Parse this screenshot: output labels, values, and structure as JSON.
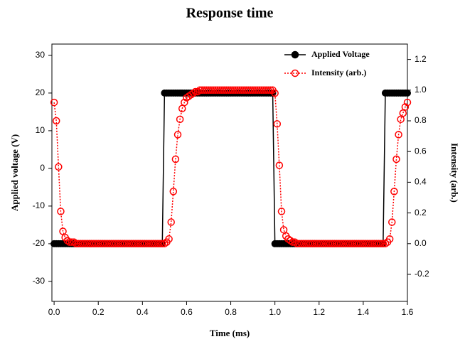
{
  "chart_data": {
    "type": "line",
    "title": "Response time",
    "x_label": "Time (ms)",
    "y_label": "Applied voltage (V)",
    "y2_label": "Intensity (arb.)",
    "x": [
      0,
      0.01,
      0.02,
      0.03,
      0.04,
      0.05,
      0.06,
      0.07,
      0.08,
      0.09,
      0.1,
      0.11,
      0.12,
      0.13,
      0.14,
      0.15,
      0.16,
      0.17,
      0.18,
      0.19,
      0.2,
      0.21,
      0.22,
      0.23,
      0.24,
      0.25,
      0.26,
      0.27,
      0.28,
      0.29,
      0.3,
      0.31,
      0.32,
      0.33,
      0.34,
      0.35,
      0.36,
      0.37,
      0.38,
      0.39,
      0.4,
      0.41,
      0.42,
      0.43,
      0.44,
      0.45,
      0.46,
      0.47,
      0.48,
      0.49,
      0.5,
      0.51,
      0.52,
      0.53,
      0.54,
      0.55,
      0.56,
      0.57,
      0.58,
      0.59,
      0.6,
      0.61,
      0.62,
      0.63,
      0.64,
      0.65,
      0.66,
      0.67,
      0.68,
      0.69,
      0.7,
      0.71,
      0.72,
      0.73,
      0.74,
      0.75,
      0.76,
      0.77,
      0.78,
      0.79,
      0.8,
      0.81,
      0.82,
      0.83,
      0.84,
      0.85,
      0.86,
      0.87,
      0.88,
      0.89,
      0.9,
      0.91,
      0.92,
      0.93,
      0.94,
      0.95,
      0.96,
      0.97,
      0.98,
      0.99,
      1,
      1.01,
      1.02,
      1.03,
      1.04,
      1.05,
      1.06,
      1.07,
      1.08,
      1.09,
      1.1,
      1.11,
      1.12,
      1.13,
      1.14,
      1.15,
      1.16,
      1.17,
      1.18,
      1.19,
      1.2,
      1.21,
      1.22,
      1.23,
      1.24,
      1.25,
      1.26,
      1.27,
      1.28,
      1.29,
      1.3,
      1.31,
      1.32,
      1.33,
      1.34,
      1.35,
      1.36,
      1.37,
      1.38,
      1.39,
      1.4,
      1.41,
      1.42,
      1.43,
      1.44,
      1.45,
      1.46,
      1.47,
      1.48,
      1.49,
      1.5,
      1.51,
      1.52,
      1.53,
      1.54,
      1.55,
      1.56,
      1.57,
      1.58,
      1.59,
      1.6
    ],
    "series": [
      {
        "name": "Applied Voltage",
        "color": "#000000",
        "marker": "filled",
        "values": [
          -20,
          -20,
          -20,
          -20,
          -20,
          -20,
          -20,
          -20,
          -20,
          -20,
          -20,
          -20,
          -20,
          -20,
          -20,
          -20,
          -20,
          -20,
          -20,
          -20,
          -20,
          -20,
          -20,
          -20,
          -20,
          -20,
          -20,
          -20,
          -20,
          -20,
          -20,
          -20,
          -20,
          -20,
          -20,
          -20,
          -20,
          -20,
          -20,
          -20,
          -20,
          -20,
          -20,
          -20,
          -20,
          -20,
          -20,
          -20,
          -20,
          -20,
          20,
          20,
          20,
          20,
          20,
          20,
          20,
          20,
          20,
          20,
          20,
          20,
          20,
          20,
          20,
          20,
          20,
          20,
          20,
          20,
          20,
          20,
          20,
          20,
          20,
          20,
          20,
          20,
          20,
          20,
          20,
          20,
          20,
          20,
          20,
          20,
          20,
          20,
          20,
          20,
          20,
          20,
          20,
          20,
          20,
          20,
          20,
          20,
          20,
          20,
          -20,
          -20,
          -20,
          -20,
          -20,
          -20,
          -20,
          -20,
          -20,
          -20,
          -20,
          -20,
          -20,
          -20,
          -20,
          -20,
          -20,
          -20,
          -20,
          -20,
          -20,
          -20,
          -20,
          -20,
          -20,
          -20,
          -20,
          -20,
          -20,
          -20,
          -20,
          -20,
          -20,
          -20,
          -20,
          -20,
          -20,
          -20,
          -20,
          -20,
          -20,
          -20,
          -20,
          -20,
          -20,
          -20,
          -20,
          -20,
          -20,
          -20,
          20,
          20,
          20,
          20,
          20,
          20,
          20,
          20,
          20,
          20,
          20
        ]
      },
      {
        "name": "Intensity (arb.)",
        "color": "#ff0000",
        "marker": "open",
        "axis": "y2",
        "values": [
          0.92,
          0.8,
          0.5,
          0.21,
          0.08,
          0.04,
          0.02,
          0.01,
          0.01,
          0.01,
          0,
          0,
          0,
          0,
          0,
          0,
          0,
          0,
          0,
          0,
          0,
          0,
          0,
          0,
          0,
          0,
          0,
          0,
          0,
          0,
          0,
          0,
          0,
          0,
          0,
          0,
          0,
          0,
          0,
          0,
          0,
          0,
          0,
          0,
          0,
          0,
          0,
          0,
          0,
          0,
          0,
          0.01,
          0.03,
          0.14,
          0.34,
          0.55,
          0.71,
          0.81,
          0.88,
          0.92,
          0.95,
          0.96,
          0.97,
          0.98,
          0.99,
          0.99,
          1,
          1,
          1,
          1,
          1,
          1,
          1,
          1,
          1,
          1,
          1,
          1,
          1,
          1,
          1,
          1,
          1,
          1,
          1,
          1,
          1,
          1,
          1,
          1,
          1,
          1,
          1,
          1,
          1,
          1,
          1,
          1,
          1,
          1,
          0.98,
          0.78,
          0.51,
          0.21,
          0.09,
          0.05,
          0.03,
          0.02,
          0.01,
          0.01,
          0,
          0,
          0,
          0,
          0,
          0,
          0,
          0,
          0,
          0,
          0,
          0,
          0,
          0,
          0,
          0,
          0,
          0,
          0,
          0,
          0,
          0,
          0,
          0,
          0,
          0,
          0,
          0,
          0,
          0,
          0,
          0,
          0,
          0,
          0,
          0,
          0,
          0,
          0,
          0,
          0,
          0.01,
          0.03,
          0.14,
          0.34,
          0.55,
          0.71,
          0.81,
          0.85,
          0.89,
          0.92
        ]
      }
    ],
    "xlim": [
      -0.01,
      1.6
    ],
    "xticks": [
      {
        "value": 0,
        "label": "0.0"
      },
      0.2,
      0.4,
      0.6,
      0.8,
      {
        "value": 1,
        "label": "1.0"
      },
      1.2,
      1.4,
      1.6
    ],
    "ylim": [
      -35.3,
      33
    ],
    "yticks": [
      -30,
      -20,
      -10,
      0,
      10,
      20,
      30
    ],
    "y2lim": [
      -0.376,
      1.3
    ],
    "y2ticks": [
      -0.2,
      {
        "value": 0,
        "label": "0.0"
      },
      0.2,
      0.4,
      0.6,
      0.8,
      {
        "value": 1,
        "label": "1.0"
      },
      1.2
    ],
    "legend": "top-right"
  }
}
